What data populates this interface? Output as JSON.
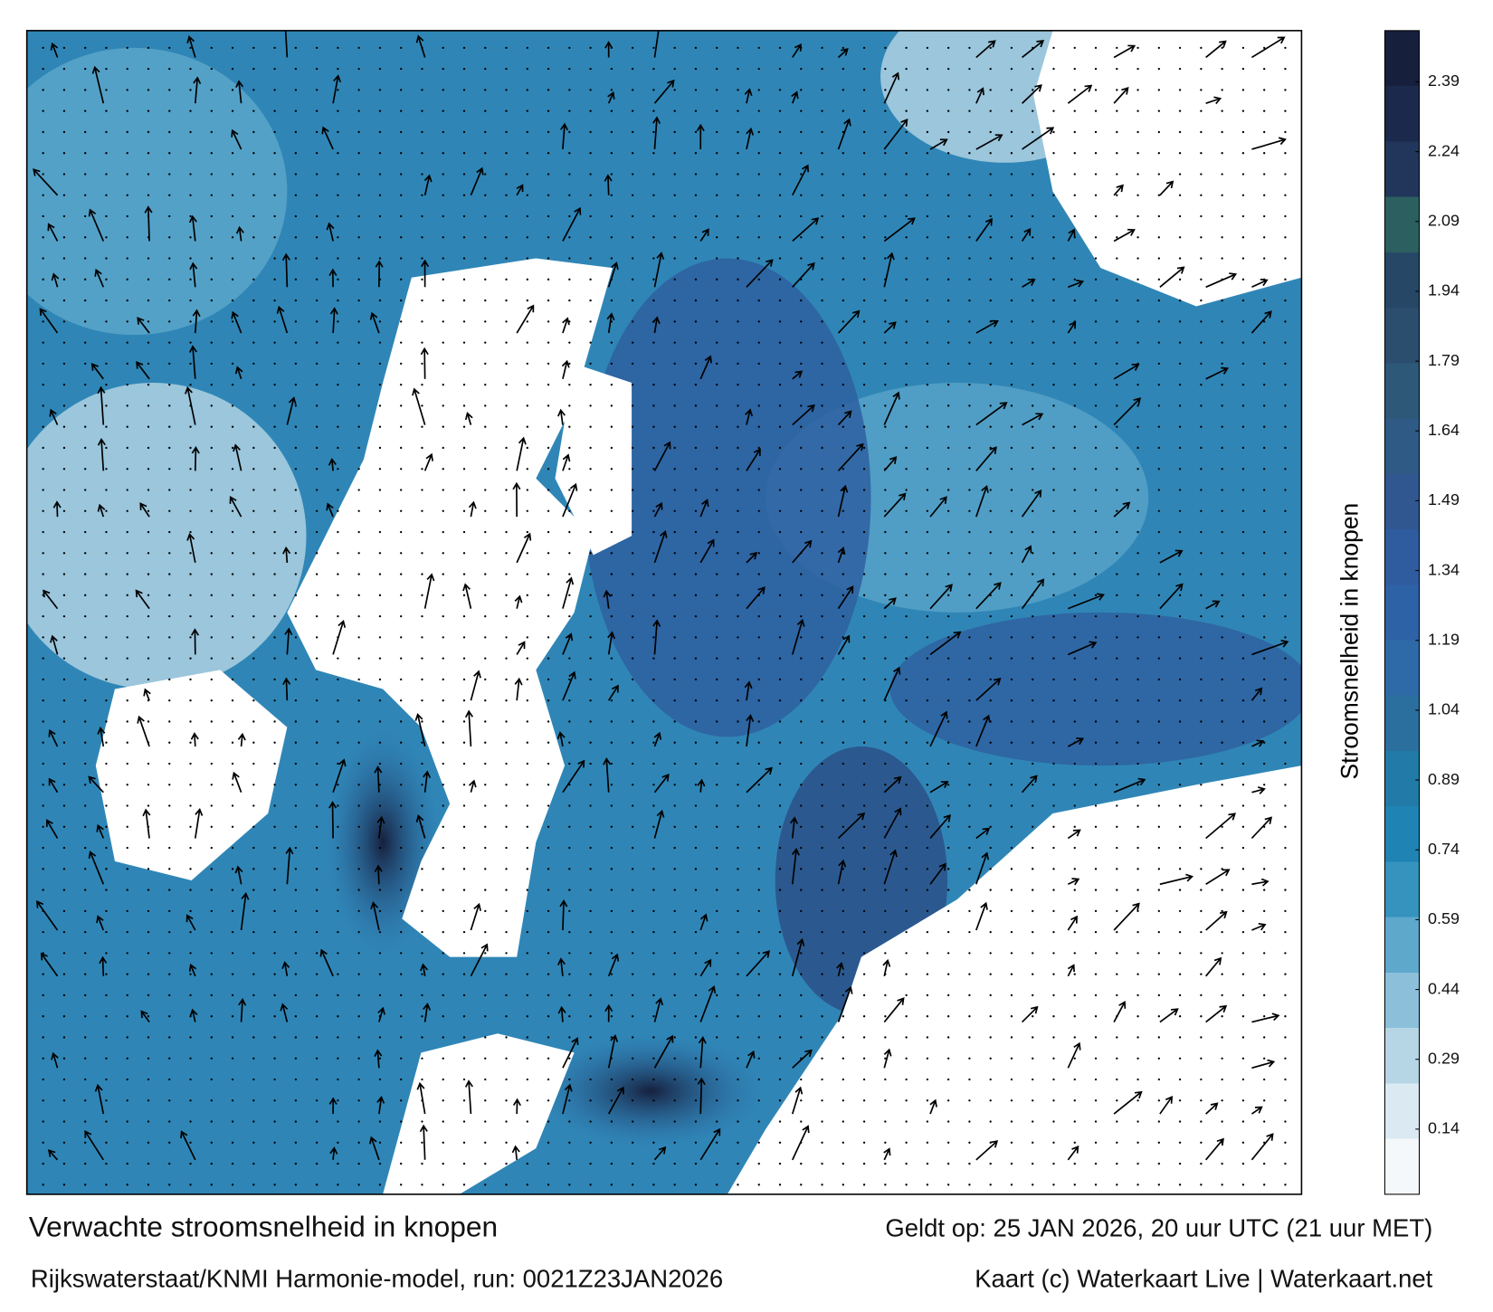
{
  "map": {
    "title": "Verwachte stroomsnelheid in knopen",
    "subtitle": "Rijkswaterstaat/KNMI Harmonie-model, run: 0021Z23JAN2026",
    "valid_time": "Geldt op: 25 JAN 2026, 20 uur UTC (21 uur MET)",
    "credit": "Kaart (c) Waterkaart Live | Waterkaart.net"
  },
  "colorbar": {
    "label": "Stroomsnelheid in knopen",
    "range": [
      0,
      2.5
    ],
    "ticks": [
      0.14,
      0.29,
      0.44,
      0.59,
      0.74,
      0.89,
      1.04,
      1.19,
      1.34,
      1.49,
      1.64,
      1.79,
      1.94,
      2.09,
      2.24,
      2.39
    ],
    "colors": [
      "#f4f8fb",
      "#dbeaf2",
      "#b6d6e6",
      "#8cc0da",
      "#5ea8cc",
      "#3593be",
      "#1f84b4",
      "#217aa8",
      "#2a6f9e",
      "#2f6aa8",
      "#2e62a6",
      "#2f5c9e",
      "#305790",
      "#2f5a86",
      "#2e5878",
      "#2b4e6e",
      "#264866",
      "#2c5f5f",
      "#21365a",
      "#1b2a4c",
      "#16203d"
    ]
  }
}
